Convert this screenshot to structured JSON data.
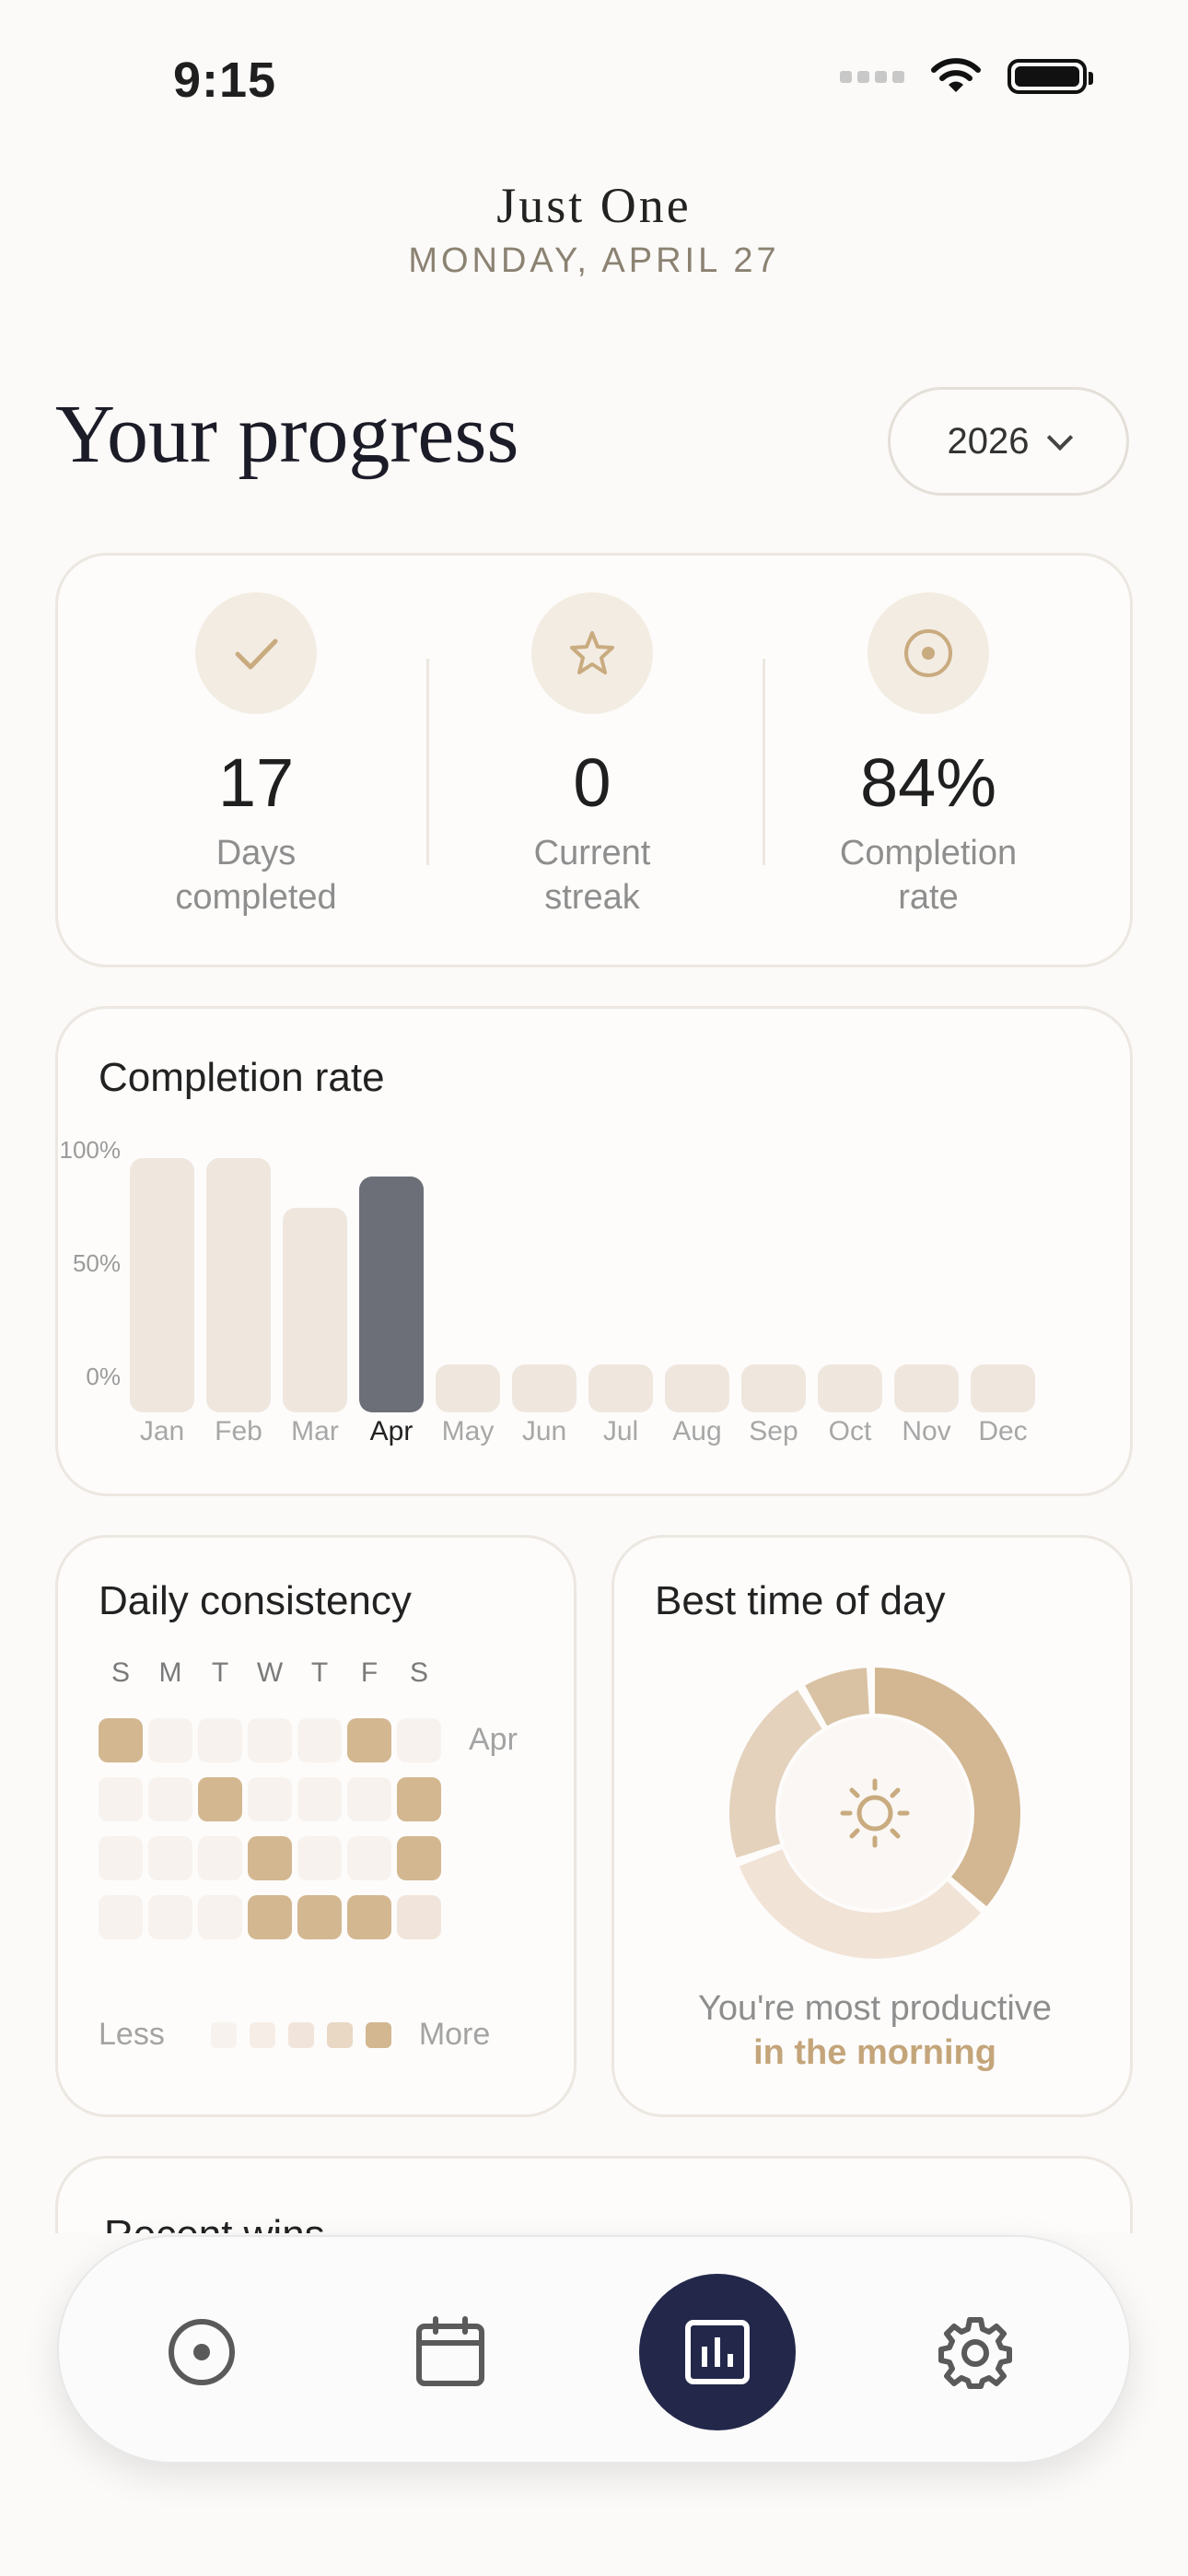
{
  "status_bar": {
    "time": "9:15"
  },
  "header": {
    "brand": "Just One",
    "date": "MONDAY, APRIL 27"
  },
  "page": {
    "title": "Your progress",
    "year": "2026"
  },
  "stats": [
    {
      "icon": "check-icon",
      "value": "17",
      "label_line1": "Days",
      "label_line2": "completed"
    },
    {
      "icon": "star-icon",
      "value": "0",
      "label_line1": "Current",
      "label_line2": "streak"
    },
    {
      "icon": "target-icon",
      "value": "84%",
      "label_line1": "Completion",
      "label_line2": "rate"
    }
  ],
  "completion_card": {
    "title": "Completion rate",
    "chart_data": {
      "type": "bar",
      "categories": [
        "Jan",
        "Feb",
        "Mar",
        "Apr",
        "May",
        "Jun",
        "Jul",
        "Aug",
        "Sep",
        "Oct",
        "Nov",
        "Dec"
      ],
      "values": [
        100,
        100,
        78,
        92,
        0,
        0,
        0,
        0,
        0,
        0,
        0,
        0
      ],
      "y_ticks": [
        "100%",
        "50%",
        "0%"
      ],
      "ylim": [
        0,
        100
      ],
      "highlight": "Apr",
      "colors": {
        "bar": "#efe6de",
        "highlight": "#6d6f78"
      }
    }
  },
  "consistency": {
    "title": "Daily consistency",
    "weekdays": [
      "S",
      "M",
      "T",
      "W",
      "T",
      "F",
      "S"
    ],
    "month": "Apr",
    "grid": [
      [
        4,
        0,
        0,
        0,
        0,
        4,
        0
      ],
      [
        0,
        0,
        4,
        0,
        0,
        0,
        4
      ],
      [
        0,
        0,
        0,
        4,
        0,
        0,
        4
      ],
      [
        0,
        0,
        0,
        4,
        4,
        4,
        2
      ]
    ],
    "legend_less": "Less",
    "legend_more": "More",
    "levels": [
      "#f8f2ee",
      "#f5ede6",
      "#f1e5db",
      "#e9d8c4",
      "#d3b790"
    ]
  },
  "best_time": {
    "title": "Best time of day",
    "icon": "sun-icon",
    "line1": "You're most productive",
    "line2": "in the morning",
    "segments": [
      {
        "value": 37,
        "color": "#d3b792"
      },
      {
        "value": 33,
        "color": "#f1e3d6"
      },
      {
        "value": 22,
        "color": "#e4d2bd"
      },
      {
        "value": 8,
        "color": "#d9c2a4"
      }
    ]
  },
  "recent_wins": {
    "title": "Recent wins"
  },
  "nav": [
    {
      "name": "nav-today",
      "icon": "target-icon",
      "active": false
    },
    {
      "name": "nav-calendar",
      "icon": "calendar-icon",
      "active": false
    },
    {
      "name": "nav-stats",
      "icon": "bar-chart-icon",
      "active": true
    },
    {
      "name": "nav-settings",
      "icon": "gear-icon",
      "active": false
    }
  ]
}
